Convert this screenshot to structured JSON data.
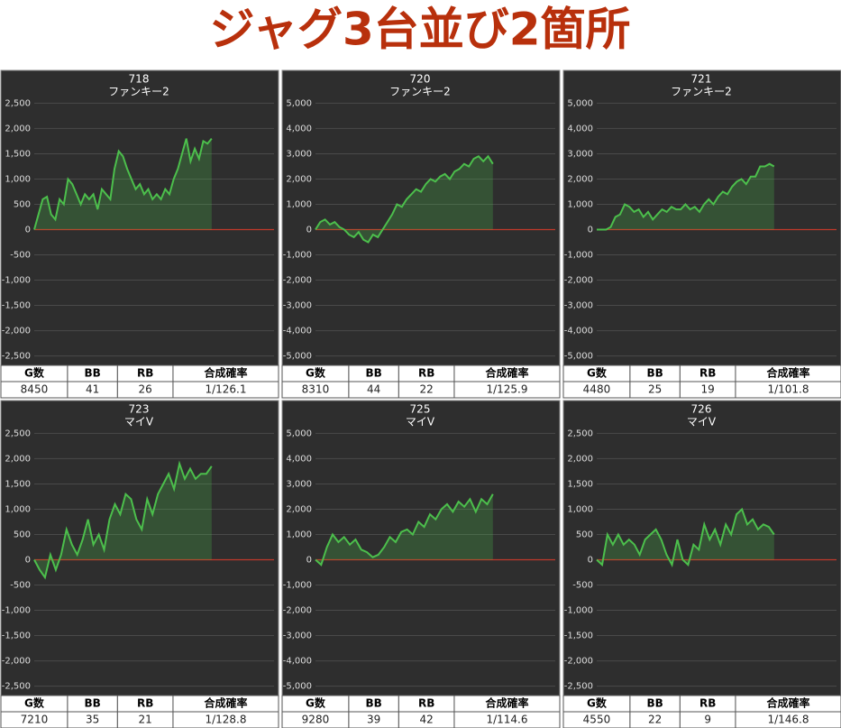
{
  "page_title": "ジャグ3台並び2箇所",
  "chart_data": [
    {
      "type": "line",
      "title": "718",
      "subtitle": "ファンキー2",
      "ylim": [
        -2650,
        2650
      ],
      "yticks": [
        {
          "value": 2500,
          "label": "2,500"
        },
        {
          "value": 2000,
          "label": "2,000"
        },
        {
          "value": 1500,
          "label": "1,500"
        },
        {
          "value": 1000,
          "label": "1,000"
        },
        500,
        0,
        -500,
        {
          "value": -1000,
          "label": "-1,000"
        },
        {
          "value": -1500,
          "label": "-1,500"
        },
        {
          "value": -2000,
          "label": "-2,000"
        },
        {
          "value": -2500,
          "label": "-2,500"
        }
      ],
      "grid": true,
      "series": [
        {
          "color": "#4cbf4c",
          "values": [
            0,
            300,
            600,
            650,
            300,
            200,
            600,
            500,
            1000,
            900,
            700,
            500,
            700,
            600,
            700,
            400,
            800,
            700,
            600,
            1200,
            1550,
            1450,
            1200,
            1000,
            800,
            900,
            700,
            800,
            600,
            700,
            600,
            800,
            700,
            1000,
            1200,
            1500,
            1800,
            1350,
            1600,
            1400,
            1750,
            1700,
            1800
          ]
        }
      ],
      "table": {
        "columns": [
          "G数",
          "BB",
          "RB",
          "合成確率"
        ],
        "rows": [
          [
            8450,
            41,
            26,
            "1/126.1"
          ]
        ]
      }
    },
    {
      "type": "line",
      "title": "720",
      "subtitle": "ファンキー2",
      "ylim": [
        -5300,
        5300
      ],
      "yticks": [
        {
          "value": 5000,
          "label": "5,000"
        },
        {
          "value": 4000,
          "label": "4,000"
        },
        {
          "value": 3000,
          "label": "3,000"
        },
        {
          "value": 2000,
          "label": "2,000"
        },
        {
          "value": 1000,
          "label": "1,000"
        },
        0,
        {
          "value": -1000,
          "label": "-1,000"
        },
        {
          "value": -2000,
          "label": "-2,000"
        },
        {
          "value": -3000,
          "label": "-3,000"
        },
        {
          "value": -4000,
          "label": "-4,000"
        },
        {
          "value": -5000,
          "label": "-5,000"
        }
      ],
      "grid": true,
      "series": [
        {
          "color": "#4cbf4c",
          "values": [
            0,
            300,
            400,
            200,
            300,
            100,
            0,
            -200,
            -300,
            -100,
            -400,
            -500,
            -200,
            -300,
            0,
            300,
            600,
            1000,
            900,
            1200,
            1400,
            1600,
            1500,
            1800,
            2000,
            1900,
            2100,
            2200,
            2000,
            2300,
            2400,
            2600,
            2500,
            2800,
            2900,
            2700,
            2900,
            2600
          ]
        }
      ],
      "table": {
        "columns": [
          "G数",
          "BB",
          "RB",
          "合成確率"
        ],
        "rows": [
          [
            8310,
            44,
            22,
            "1/125.9"
          ]
        ]
      }
    },
    {
      "type": "line",
      "title": "721",
      "subtitle": "ファンキー2",
      "ylim": [
        -5300,
        5300
      ],
      "yticks": [
        {
          "value": 5000,
          "label": "5,000"
        },
        {
          "value": 4000,
          "label": "4,000"
        },
        {
          "value": 3000,
          "label": "3,000"
        },
        {
          "value": 2000,
          "label": "2,000"
        },
        {
          "value": 1000,
          "label": "1,000"
        },
        0,
        {
          "value": -1000,
          "label": "-1,000"
        },
        {
          "value": -2000,
          "label": "-2,000"
        },
        {
          "value": -3000,
          "label": "-3,000"
        },
        {
          "value": -4000,
          "label": "-4,000"
        },
        {
          "value": -5000,
          "label": "-5,000"
        }
      ],
      "grid": true,
      "series": [
        {
          "color": "#4cbf4c",
          "values": [
            0,
            0,
            0,
            100,
            500,
            600,
            1000,
            900,
            700,
            800,
            500,
            700,
            400,
            600,
            800,
            700,
            900,
            800,
            800,
            1000,
            800,
            900,
            700,
            1000,
            1200,
            1000,
            1300,
            1500,
            1400,
            1700,
            1900,
            2000,
            1800,
            2100,
            2100,
            2500,
            2500,
            2600,
            2500
          ]
        }
      ],
      "table": {
        "columns": [
          "G数",
          "BB",
          "RB",
          "合成確率"
        ],
        "rows": [
          [
            4480,
            25,
            19,
            "1/101.8"
          ]
        ]
      }
    },
    {
      "type": "line",
      "title": "723",
      "subtitle": "マイV",
      "ylim": [
        -2650,
        2650
      ],
      "yticks": [
        {
          "value": 2500,
          "label": "2,500"
        },
        {
          "value": 2000,
          "label": "2,000"
        },
        {
          "value": 1500,
          "label": "1,500"
        },
        {
          "value": 1000,
          "label": "1,000"
        },
        500,
        0,
        -500,
        {
          "value": -1000,
          "label": "-1,000"
        },
        {
          "value": -1500,
          "label": "-1,500"
        },
        {
          "value": -2000,
          "label": "-2,000"
        },
        {
          "value": -2500,
          "label": "-2,500"
        }
      ],
      "grid": true,
      "series": [
        {
          "color": "#4cbf4c",
          "values": [
            0,
            -200,
            -350,
            100,
            -200,
            100,
            600,
            300,
            100,
            400,
            800,
            300,
            500,
            200,
            800,
            1100,
            900,
            1300,
            1200,
            800,
            600,
            1200,
            900,
            1300,
            1500,
            1700,
            1400,
            1900,
            1600,
            1800,
            1600,
            1700,
            1700,
            1850
          ]
        }
      ],
      "table": {
        "columns": [
          "G数",
          "BB",
          "RB",
          "合成確率"
        ],
        "rows": [
          [
            7210,
            35,
            21,
            "1/128.8"
          ]
        ]
      }
    },
    {
      "type": "line",
      "title": "725",
      "subtitle": "マイV",
      "ylim": [
        -5300,
        5300
      ],
      "yticks": [
        {
          "value": 5000,
          "label": "5,000"
        },
        {
          "value": 4000,
          "label": "4,000"
        },
        {
          "value": 3000,
          "label": "3,000"
        },
        {
          "value": 2000,
          "label": "2,000"
        },
        {
          "value": 1000,
          "label": "1,000"
        },
        0,
        {
          "value": -1000,
          "label": "-1,000"
        },
        {
          "value": -2000,
          "label": "-2,000"
        },
        {
          "value": -3000,
          "label": "-3,000"
        },
        {
          "value": -4000,
          "label": "-4,000"
        },
        {
          "value": -5000,
          "label": "-5,000"
        }
      ],
      "grid": true,
      "series": [
        {
          "color": "#4cbf4c",
          "values": [
            0,
            -200,
            500,
            1000,
            700,
            900,
            600,
            800,
            400,
            300,
            100,
            200,
            500,
            900,
            700,
            1100,
            1200,
            1000,
            1500,
            1300,
            1800,
            1600,
            2000,
            2200,
            1900,
            2300,
            2100,
            2400,
            1900,
            2400,
            2200,
            2600
          ]
        }
      ],
      "table": {
        "columns": [
          "G数",
          "BB",
          "RB",
          "合成確率"
        ],
        "rows": [
          [
            9280,
            39,
            42,
            "1/114.6"
          ]
        ]
      }
    },
    {
      "type": "line",
      "title": "726",
      "subtitle": "マイV",
      "ylim": [
        -2650,
        2650
      ],
      "yticks": [
        {
          "value": 2500,
          "label": "2,500"
        },
        {
          "value": 2000,
          "label": "2,000"
        },
        {
          "value": 1500,
          "label": "1,500"
        },
        {
          "value": 1000,
          "label": "1,000"
        },
        500,
        0,
        -500,
        {
          "value": -1000,
          "label": "-1,000"
        },
        {
          "value": -1500,
          "label": "-1,500"
        },
        {
          "value": -2000,
          "label": "-2,000"
        },
        {
          "value": -2500,
          "label": "-2,500"
        }
      ],
      "grid": true,
      "series": [
        {
          "color": "#4cbf4c",
          "values": [
            0,
            -100,
            500,
            300,
            500,
            300,
            400,
            300,
            100,
            400,
            500,
            600,
            400,
            100,
            -100,
            400,
            0,
            -100,
            300,
            200,
            700,
            400,
            600,
            300,
            700,
            500,
            900,
            1000,
            700,
            800,
            600,
            700,
            650,
            500
          ]
        }
      ],
      "table": {
        "columns": [
          "G数",
          "BB",
          "RB",
          "合成確率"
        ],
        "rows": [
          [
            4550,
            22,
            9,
            "1/146.8"
          ]
        ]
      }
    }
  ]
}
